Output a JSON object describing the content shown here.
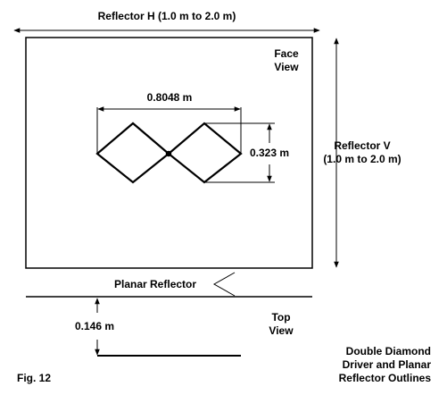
{
  "labels": {
    "reflector_h": "Reflector H (1.0 m to 2.0 m)",
    "face_view_line1": "Face",
    "face_view_line2": "View",
    "driver_width": "0.8048 m",
    "driver_height": "0.323 m",
    "reflector_v_line1": "Reflector V",
    "reflector_v_line2": "(1.0 m to 2.0 m)",
    "planar_reflector": "Planar Reflector",
    "spacing": "0.146 m",
    "top_view_line1": "Top",
    "top_view_line2": "View",
    "caption_line1": "Double Diamond",
    "caption_line2": "Driver and Planar",
    "caption_line3": "Reflector Outlines",
    "figure": "Fig. 12"
  },
  "colors": {
    "ink": "#000000",
    "background": "#ffffff"
  }
}
